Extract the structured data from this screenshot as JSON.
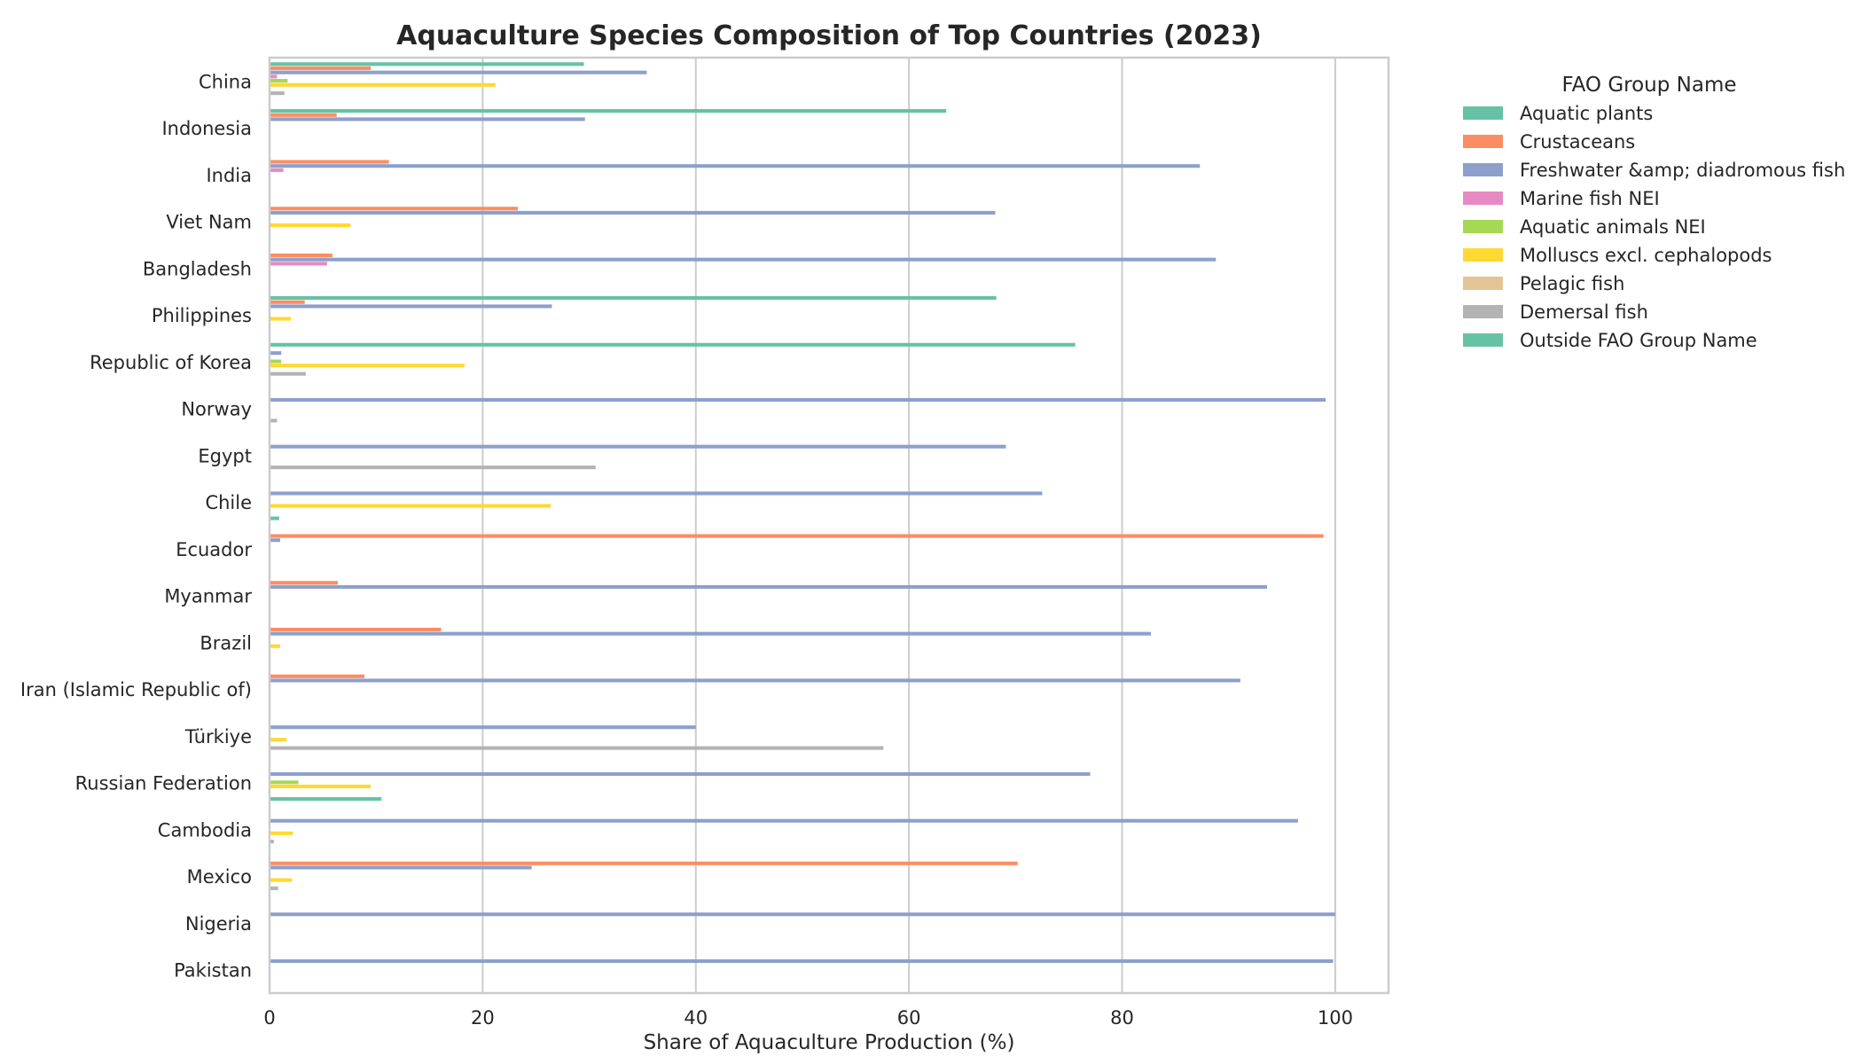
{
  "chart_data": {
    "type": "bar",
    "orientation": "horizontal",
    "title": "Aquaculture Species Composition of Top Countries (2023)",
    "xlabel": "Share of Aquaculture Production (%)",
    "ylabel": "",
    "xlim": [
      0,
      105
    ],
    "xticks": [
      0,
      20,
      40,
      60,
      80,
      100
    ],
    "grid": "vertical",
    "legend_title": "FAO Group Name",
    "legend_position": "outside right",
    "categories": [
      "China",
      "Indonesia",
      "India",
      "Viet Nam",
      "Bangladesh",
      "Philippines",
      "Republic of Korea",
      "Norway",
      "Egypt",
      "Chile",
      "Ecuador",
      "Myanmar",
      "Brazil",
      "Iran (Islamic Republic of)",
      "Türkiye",
      "Russian Federation",
      "Cambodia",
      "Mexico",
      "Nigeria",
      "Pakistan"
    ],
    "series": [
      {
        "name": "Aquatic plants",
        "color": "#66c2a5",
        "values": [
          29.5,
          63.5,
          0,
          0,
          0,
          68.2,
          75.6,
          0,
          0,
          0,
          0,
          0,
          0,
          0,
          0,
          0,
          0,
          0,
          0,
          0
        ]
      },
      {
        "name": "Crustaceans",
        "color": "#fc8d62",
        "values": [
          9.5,
          6.3,
          11.2,
          23.3,
          5.9,
          3.3,
          0,
          0,
          0,
          0,
          98.9,
          6.4,
          16.1,
          8.9,
          0,
          0,
          0,
          70.2,
          0,
          0
        ]
      },
      {
        "name": "Freshwater &amp; diadromous fish",
        "color": "#8da0cb",
        "values": [
          35.4,
          29.6,
          87.3,
          68.1,
          88.8,
          26.5,
          1.1,
          99.1,
          69.1,
          72.5,
          1.0,
          93.6,
          82.7,
          91.1,
          40.0,
          77.0,
          96.5,
          24.6,
          100.0,
          99.8
        ]
      },
      {
        "name": "Marine fish NEI",
        "color": "#e78ac3",
        "values": [
          0.7,
          0,
          1.3,
          0,
          5.4,
          0,
          0,
          0,
          0,
          0,
          0,
          0,
          0,
          0,
          0,
          0,
          0,
          0,
          0,
          0
        ]
      },
      {
        "name": "Aquatic animals NEI",
        "color": "#a6d854",
        "values": [
          1.7,
          0,
          0,
          0,
          0,
          0,
          1.1,
          0,
          0,
          0,
          0,
          0,
          0,
          0,
          0,
          2.7,
          0,
          0,
          0,
          0
        ]
      },
      {
        "name": "Molluscs excl. cephalopods",
        "color": "#ffd92f",
        "values": [
          21.2,
          0,
          0,
          7.6,
          0,
          2.0,
          18.3,
          0,
          0,
          26.4,
          0,
          0,
          1.0,
          0,
          1.6,
          9.5,
          2.2,
          2.1,
          0,
          0
        ]
      },
      {
        "name": "Pelagic fish",
        "color": "#e5c494",
        "values": [
          0,
          0,
          0,
          0,
          0,
          0,
          0,
          0,
          0,
          0,
          0,
          0,
          0,
          0,
          0,
          0,
          0,
          0,
          0,
          0
        ]
      },
      {
        "name": "Demersal fish",
        "color": "#b3b3b3",
        "values": [
          1.4,
          0,
          0,
          0,
          0,
          0,
          3.4,
          0.7,
          30.6,
          0,
          0,
          0,
          0,
          0,
          57.6,
          0,
          0.4,
          0.8,
          0,
          0
        ]
      },
      {
        "name": "Outside FAO Group Name",
        "color": "#66c2a5",
        "values": [
          0,
          0,
          0,
          0,
          0,
          0,
          0,
          0,
          0,
          0.9,
          0,
          0,
          0,
          0,
          0,
          10.5,
          0,
          0,
          0,
          0
        ]
      }
    ]
  }
}
